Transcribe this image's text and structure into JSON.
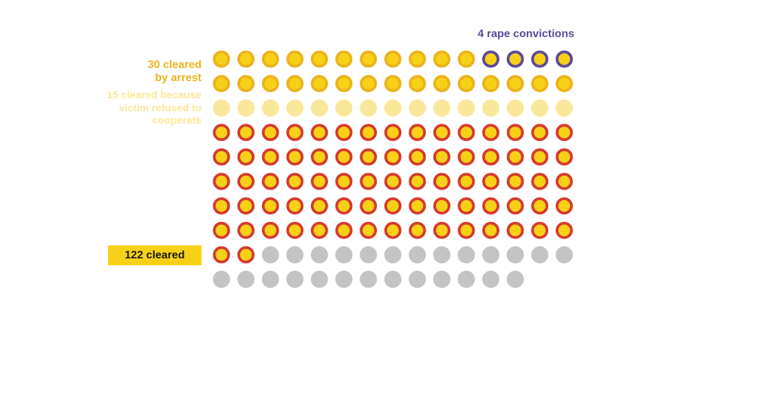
{
  "chart_data": {
    "type": "waffle",
    "total": 148,
    "columns": 15,
    "categories": [
      {
        "key": "convictions",
        "label": "4 rape convictions",
        "count": 4,
        "fill": "#f7d117",
        "stroke": "#5b4a9b"
      },
      {
        "key": "arrest",
        "label": "30 cleared by arrest",
        "label_lines": [
          "30 cleared",
          "by arrest"
        ],
        "count": 26,
        "fill": "#f7d117",
        "stroke": "#edb21e"
      },
      {
        "key": "refused",
        "label": "15 cleared because victim refused to cooperate",
        "label_lines": [
          "15 cleared because",
          "victim refused to",
          "cooperate"
        ],
        "count": 15,
        "fill": "#fae89a",
        "stroke": "#fae89a"
      },
      {
        "key": "other_cleared",
        "label": "",
        "count": 77,
        "fill": "#f7d117",
        "stroke": "#d63a2f"
      },
      {
        "key": "not_cleared",
        "label": "",
        "count": 26,
        "fill": "#c4c4c4",
        "stroke": "#c4c4c4"
      }
    ],
    "annotation": {
      "label": "122 cleared",
      "value": 122
    }
  },
  "colors": {
    "conviction_label": "#5b4a9b",
    "arrest_label": "#edb21e",
    "refused_label": "#fae89a",
    "total_box": "#f7d117",
    "total_text": "#1a1a1a"
  }
}
